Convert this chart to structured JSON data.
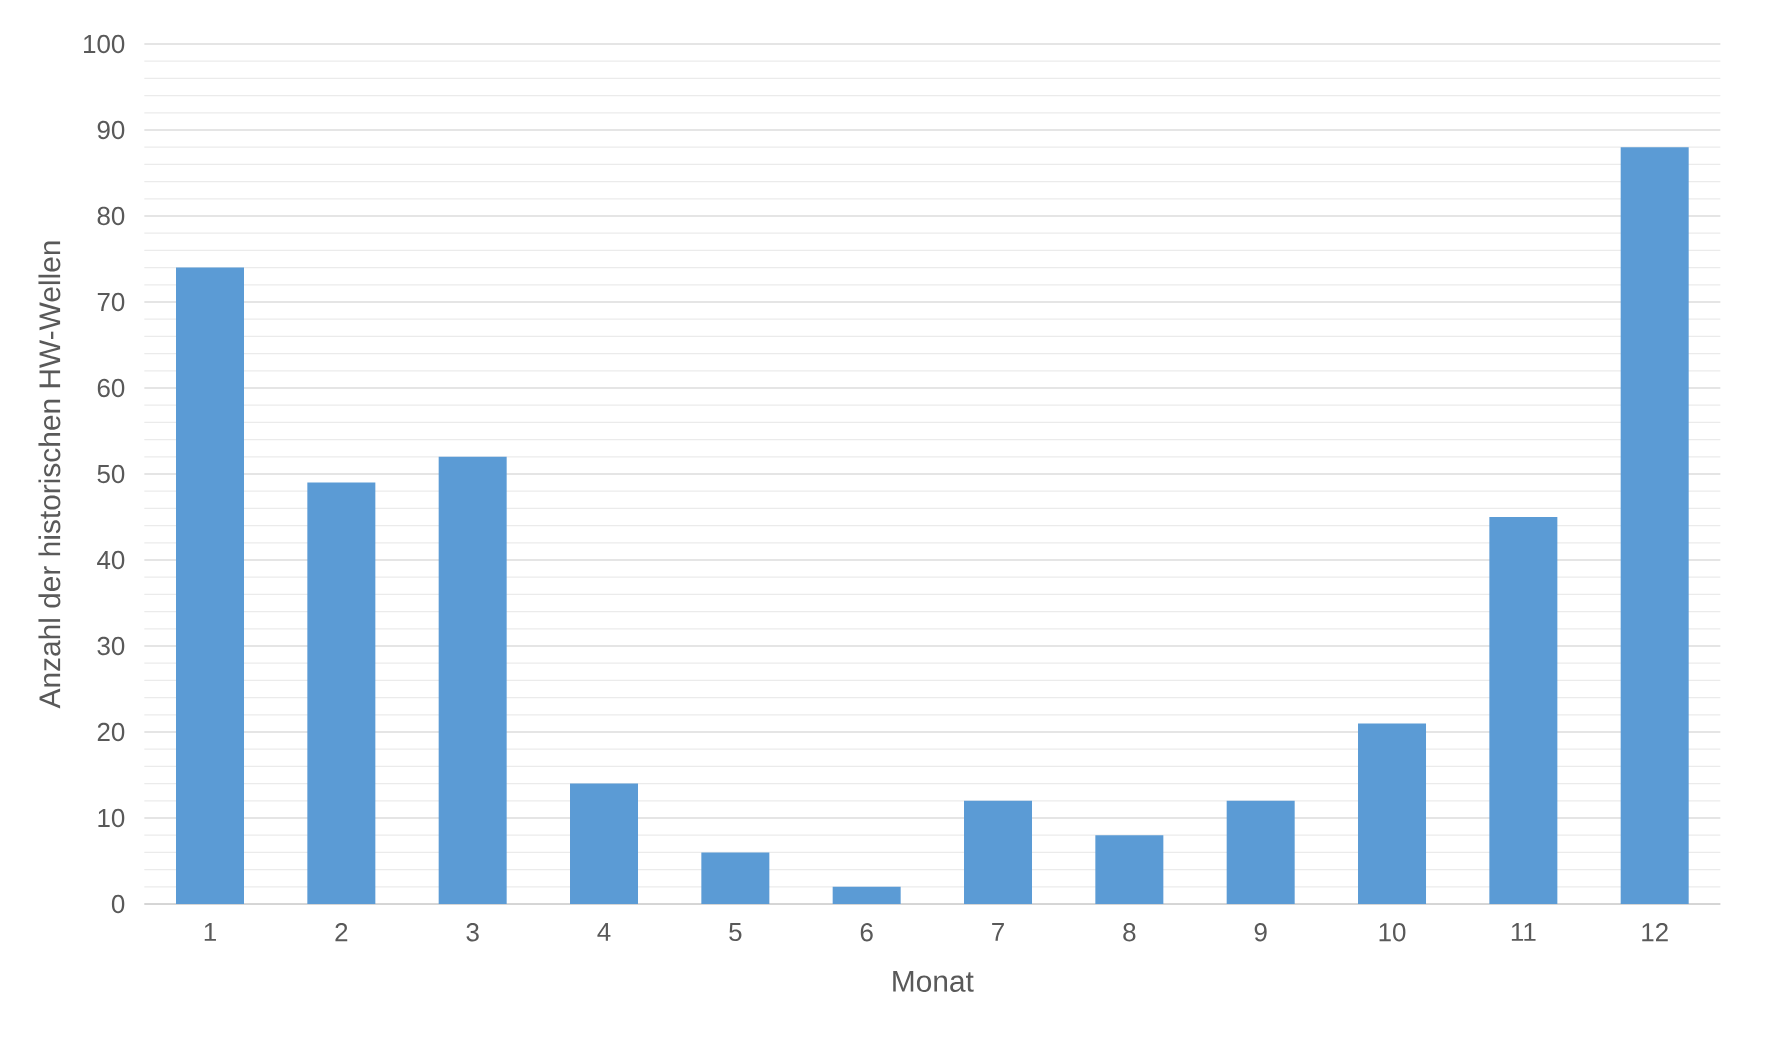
{
  "chart_data": {
    "type": "bar",
    "xlabel": "Monat",
    "ylabel": "Anzahl der historischen HW-Wellen",
    "categories": [
      "1",
      "2",
      "3",
      "4",
      "5",
      "6",
      "7",
      "8",
      "9",
      "10",
      "11",
      "12"
    ],
    "values": [
      74,
      49,
      52,
      14,
      6,
      2,
      12,
      8,
      12,
      21,
      45,
      88
    ],
    "color": "#5b9bd5",
    "ylim": [
      0,
      100
    ],
    "yticks": [
      0,
      10,
      20,
      30,
      40,
      50,
      60,
      70,
      80,
      90,
      100
    ],
    "grid": "y"
  }
}
